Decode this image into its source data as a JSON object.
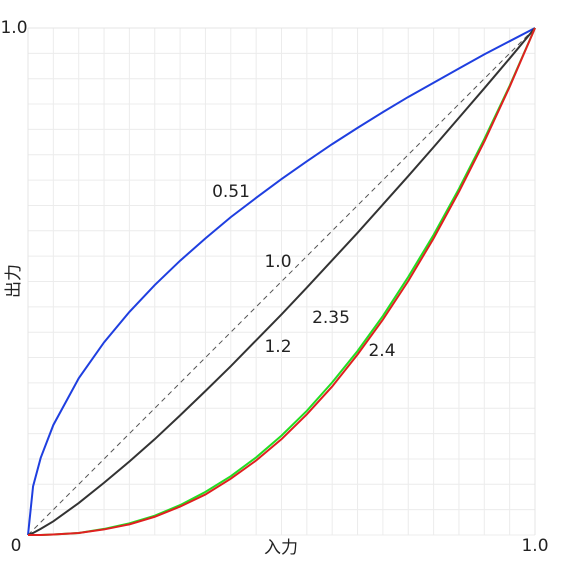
{
  "chart_data": {
    "type": "line",
    "x": [
      0,
      0.01,
      0.025,
      0.05,
      0.1,
      0.15,
      0.2,
      0.25,
      0.3,
      0.35,
      0.4,
      0.45,
      0.5,
      0.55,
      0.6,
      0.65,
      0.7,
      0.75,
      0.8,
      0.85,
      0.9,
      0.95,
      1
    ],
    "series": [
      {
        "name": "0.51",
        "color": "#1f3fe0",
        "values": [
          0,
          0.096,
          0.152,
          0.217,
          0.309,
          0.38,
          0.44,
          0.493,
          0.541,
          0.585,
          0.627,
          0.665,
          0.702,
          0.737,
          0.771,
          0.803,
          0.834,
          0.864,
          0.892,
          0.92,
          0.948,
          0.974,
          1
        ]
      },
      {
        "name": "1.0",
        "color": "#555555",
        "style": "dashed",
        "values": [
          0,
          0.01,
          0.025,
          0.05,
          0.1,
          0.15,
          0.2,
          0.25,
          0.3,
          0.35,
          0.4,
          0.45,
          0.5,
          0.55,
          0.6,
          0.65,
          0.7,
          0.75,
          0.8,
          0.85,
          0.9,
          0.95,
          1
        ]
      },
      {
        "name": "1.2",
        "color": "#333333",
        "values": [
          0,
          0.004,
          0.012,
          0.027,
          0.063,
          0.103,
          0.145,
          0.189,
          0.236,
          0.284,
          0.333,
          0.384,
          0.435,
          0.488,
          0.542,
          0.596,
          0.652,
          0.708,
          0.765,
          0.823,
          0.881,
          0.94,
          1
        ]
      },
      {
        "name": "2.35",
        "color": "#22dd22",
        "values": [
          0,
          0,
          0,
          0.001,
          0.004,
          0.012,
          0.023,
          0.038,
          0.059,
          0.085,
          0.116,
          0.153,
          0.196,
          0.245,
          0.301,
          0.363,
          0.432,
          0.509,
          0.592,
          0.683,
          0.781,
          0.886,
          1
        ]
      },
      {
        "name": "2.4",
        "color": "#e02020",
        "values": [
          0,
          0,
          0,
          0.001,
          0.004,
          0.011,
          0.021,
          0.036,
          0.056,
          0.08,
          0.111,
          0.147,
          0.189,
          0.238,
          0.293,
          0.356,
          0.425,
          0.501,
          0.585,
          0.677,
          0.776,
          0.884,
          1
        ]
      }
    ],
    "x_label": "入力",
    "y_label": "出力",
    "xlim": [
      0,
      1
    ],
    "ylim": [
      0,
      1
    ],
    "xticks": [
      0,
      {
        "value": 1,
        "label": "1.0"
      }
    ],
    "yticks": [
      {
        "value": 1,
        "label": "1.0"
      }
    ],
    "grid": true
  }
}
